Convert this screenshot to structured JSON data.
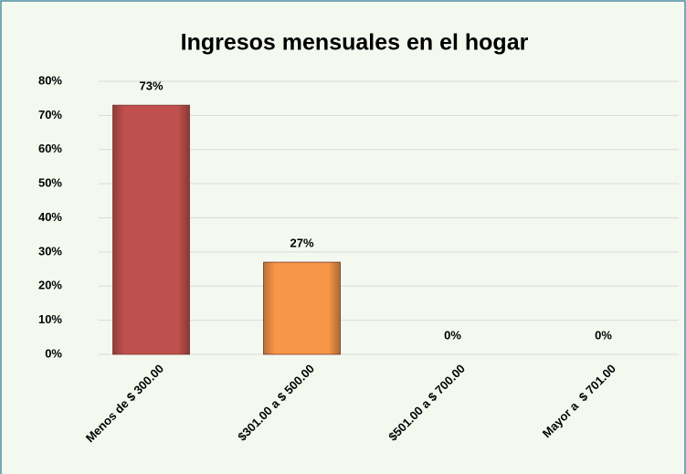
{
  "chart_data": {
    "type": "bar",
    "title": "Ingresos mensuales en el hogar",
    "categories": [
      "Menos de $ 300.00",
      "$301.00 a $ 500.00",
      "$501.00 a $ 700.00",
      "Mayor a  $ 701.00"
    ],
    "values": [
      73,
      27,
      0,
      0
    ],
    "value_labels": [
      "73%",
      "27%",
      "0%",
      "0%"
    ],
    "colors": [
      "#c0504d",
      "#f79646",
      "#9bbb59",
      "#4bacc6"
    ],
    "ylim": [
      0,
      80
    ],
    "yticks": [
      {
        "value": 0,
        "label": "0%"
      },
      {
        "value": 10,
        "label": "10%"
      },
      {
        "value": 20,
        "label": "20%"
      },
      {
        "value": 30,
        "label": "30%"
      },
      {
        "value": 40,
        "label": "40%"
      },
      {
        "value": 50,
        "label": "50%"
      },
      {
        "value": 60,
        "label": "60%"
      },
      {
        "value": 70,
        "label": "70%"
      },
      {
        "value": 80,
        "label": "80%"
      }
    ],
    "grid": true
  }
}
